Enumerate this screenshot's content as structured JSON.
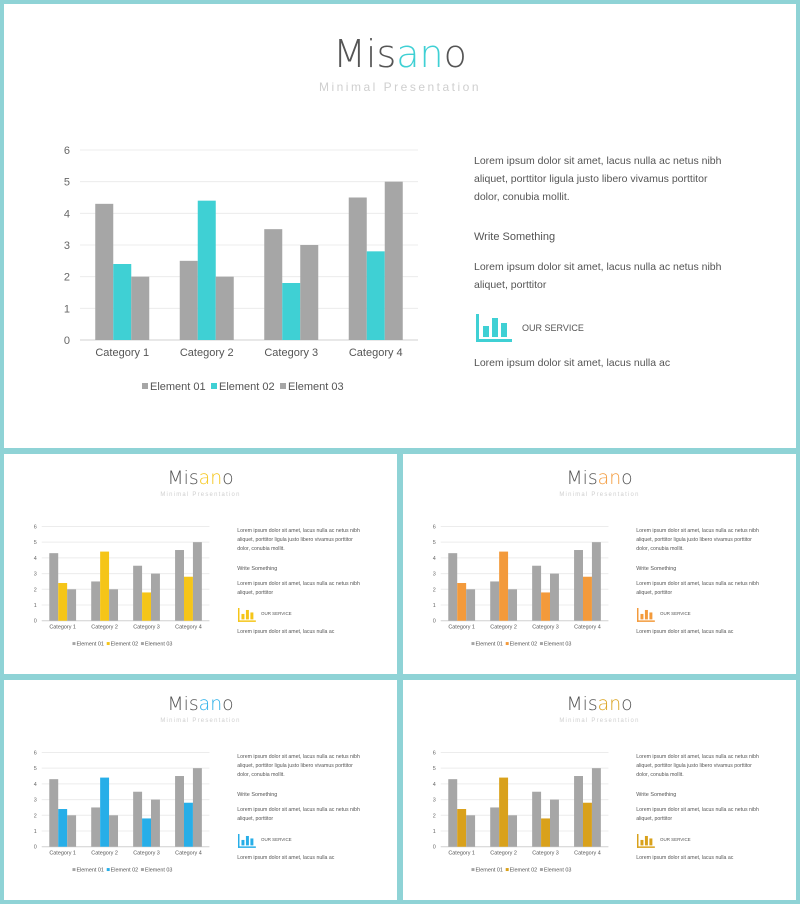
{
  "slides": [
    {
      "accent": "#3fd0d4",
      "title_main": "Mis",
      "title_accent": "an",
      "title_end": "o",
      "subtitle": "Minimal Presentation",
      "paragraph1": "Lorem ipsum dolor sit amet, lacus nulla ac netus nibh aliquet, porttitor ligula justo libero vivamus porttitor dolor, conubia mollit.",
      "heading": "Write Something",
      "paragraph2": "Lorem ipsum dolor sit amet, lacus nulla ac netus nibh aliquet, porttitor",
      "service_label": "OUR SERVICE",
      "service_icon": "bar-chart-icon",
      "paragraph3": "Lorem ipsum dolor sit amet, lacus nulla ac"
    },
    {
      "accent": "#f5c518",
      "title_main": "Mis",
      "title_accent": "an",
      "title_end": "o",
      "subtitle": "Minimal Presentation",
      "paragraph1": "Lorem ipsum dolor sit amet, lacus nulla ac netus nibh aliquet, porttitor ligula justo libero vivamus porttitor dolor, conubia mollit.",
      "heading": "Write Something",
      "paragraph2": "Lorem ipsum dolor sit amet, lacus nulla ac netus nibh aliquet, porttitor",
      "service_label": "OUR SERVICE",
      "service_icon": "bar-chart-icon",
      "paragraph3": "Lorem ipsum dolor sit amet, lacus nulla ac"
    },
    {
      "accent": "#f39a3b",
      "title_main": "Mis",
      "title_accent": "an",
      "title_end": "o",
      "subtitle": "Minimal Presentation",
      "paragraph1": "Lorem ipsum dolor sit amet, lacus nulla ac netus nibh aliquet, porttitor ligula justo libero vivamus porttitor dolor, conubia mollit.",
      "heading": "Write Something",
      "paragraph2": "Lorem ipsum dolor sit amet, lacus nulla ac netus nibh aliquet, porttitor",
      "service_label": "OUR SERVICE",
      "service_icon": "bar-chart-icon",
      "paragraph3": "Lorem ipsum dolor sit amet, lacus nulla ac"
    },
    {
      "accent": "#27aee8",
      "title_main": "Mis",
      "title_accent": "an",
      "title_end": "o",
      "subtitle": "Minimal Presentation",
      "paragraph1": "Lorem ipsum dolor sit amet, lacus nulla ac netus nibh aliquet, porttitor ligula justo libero vivamus porttitor dolor, conubia mollit.",
      "heading": "Write Something",
      "paragraph2": "Lorem ipsum dolor sit amet, lacus nulla ac netus nibh aliquet, porttitor",
      "service_label": "OUR SERVICE",
      "service_icon": "bar-chart-icon",
      "paragraph3": "Lorem ipsum dolor sit amet, lacus nulla ac"
    },
    {
      "accent": "#d9a11b",
      "title_main": "Mis",
      "title_accent": "an",
      "title_end": "o",
      "subtitle": "Minimal Presentation",
      "paragraph1": "Lorem ipsum dolor sit amet, lacus nulla ac netus nibh aliquet, porttitor ligula justo libero vivamus porttitor dolor, conubia mollit.",
      "heading": "Write Something",
      "paragraph2": "Lorem ipsum dolor sit amet, lacus nulla ac netus nibh aliquet, porttitor",
      "service_label": "OUR SERVICE",
      "service_icon": "bar-chart-icon",
      "paragraph3": "Lorem ipsum dolor sit amet, lacus nulla ac"
    }
  ],
  "chart_data": {
    "type": "bar",
    "categories": [
      "Category 1",
      "Category 2",
      "Category 3",
      "Category 4"
    ],
    "series": [
      {
        "name": "Element 01",
        "values": [
          4.3,
          2.5,
          3.5,
          4.5
        ],
        "color": "#a6a6a6"
      },
      {
        "name": "Element 02",
        "values": [
          2.4,
          4.4,
          1.8,
          2.8
        ],
        "color": "accent"
      },
      {
        "name": "Element 03",
        "values": [
          2.0,
          2.0,
          3.0,
          5.0
        ],
        "color": "#a6a6a6"
      }
    ],
    "ylim": [
      0,
      6
    ],
    "yticks": [
      0,
      1,
      2,
      3,
      4,
      5,
      6
    ],
    "grid": true,
    "legend": "bottom"
  }
}
